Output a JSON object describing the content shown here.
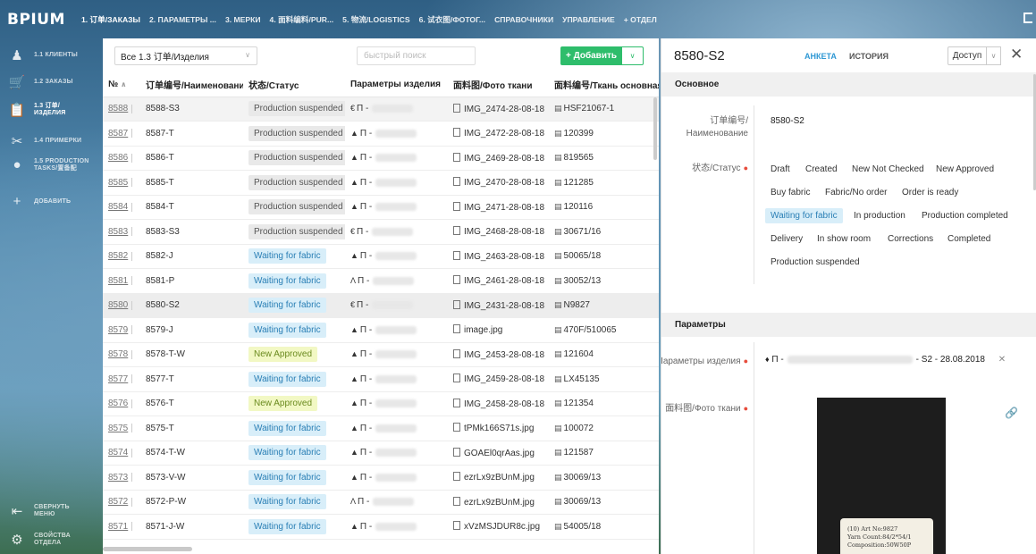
{
  "app": {
    "logo": "BPIUM"
  },
  "topnav": [
    {
      "label": "1. 订单/ЗАКАЗЫ",
      "active": true
    },
    {
      "label": "2. ПАРАМЕТРЫ ..."
    },
    {
      "label": "3. МЕРКИ"
    },
    {
      "label": "4. 面料编料/PUR..."
    },
    {
      "label": "5. 物流/LOGISTICS"
    },
    {
      "label": "6. 试衣图/ФОТОГ..."
    },
    {
      "label": "СПРАВОЧНИКИ"
    },
    {
      "label": "УПРАВЛЕНИЕ"
    },
    {
      "label": "+ ОТДЕЛ"
    }
  ],
  "sidebar": {
    "items": [
      {
        "label": "1.1 КЛИЕНТЫ",
        "icon": "person-icon"
      },
      {
        "label": "1.2 ЗАКАЗЫ",
        "icon": "cart-icon"
      },
      {
        "label": "1.3 订单/ ИЗДЕЛИЯ",
        "icon": "clipboard-icon",
        "active": true
      },
      {
        "label": "1.4 ПРИМЕРКИ",
        "icon": "scissors-icon"
      },
      {
        "label": "1.5 PRODUCTION TASKS/置备配",
        "icon": "chat-icon"
      },
      {
        "label": "ДОБАВИТЬ",
        "icon": "plus-icon"
      }
    ],
    "collapse_label": "СВЕРНУТЬ МЕНЮ",
    "settings_label": "СВОЙСТВА ОТДЕЛА"
  },
  "toolbar": {
    "view_value": "Все 1.3 订单/Изделия",
    "search_placeholder": "быстрый поиск",
    "add_label": "+ Добавить"
  },
  "table": {
    "columns": [
      "№",
      "订单编号/Наименование",
      "状态/Статус",
      "Параметры изделия",
      "面料图/Фото ткани",
      "面料编号/Ткань основная"
    ],
    "rows": [
      {
        "n": "8588",
        "name": "8588-S3",
        "status": "Production suspended",
        "param": "П -",
        "photo": "IMG_2474-28-08-18",
        "fabric": "HSF21067-1",
        "style": "hl"
      },
      {
        "n": "8587",
        "name": "8587-T",
        "status": "Production suspended",
        "param": "П -",
        "photo": "IMG_2472-28-08-18",
        "fabric": "120399"
      },
      {
        "n": "8586",
        "name": "8586-T",
        "status": "Production suspended",
        "param": "П -",
        "photo": "IMG_2469-28-08-18",
        "fabric": "819565"
      },
      {
        "n": "8585",
        "name": "8585-T",
        "status": "Production suspended",
        "param": "П -",
        "photo": "IMG_2470-28-08-18",
        "fabric": "121285"
      },
      {
        "n": "8584",
        "name": "8584-T",
        "status": "Production suspended",
        "param": "П -",
        "photo": "IMG_2471-28-08-18",
        "fabric": "120116"
      },
      {
        "n": "8583",
        "name": "8583-S3",
        "status": "Production suspended",
        "param": "П -",
        "photo": "IMG_2468-28-08-18",
        "fabric": "30671/16"
      },
      {
        "n": "8582",
        "name": "8582-J",
        "status": "Waiting for fabric",
        "param": "П -",
        "photo": "IMG_2463-28-08-18",
        "fabric": "50065/18"
      },
      {
        "n": "8581",
        "name": "8581-P",
        "status": "Waiting for fabric",
        "param": "П -",
        "photo": "IMG_2461-28-08-18",
        "fabric": "30052/13"
      },
      {
        "n": "8580",
        "name": "8580-S2",
        "status": "Waiting for fabric",
        "param": "П -",
        "photo": "IMG_2431-28-08-18",
        "fabric": "N9827",
        "style": "sel"
      },
      {
        "n": "8579",
        "name": "8579-J",
        "status": "Waiting for fabric",
        "param": "П -",
        "photo": "image.jpg",
        "fabric": "470F/510065"
      },
      {
        "n": "8578",
        "name": "8578-T-W",
        "status": "New Approved",
        "param": "П -",
        "photo": "IMG_2453-28-08-18",
        "fabric": "121604"
      },
      {
        "n": "8577",
        "name": "8577-T",
        "status": "Waiting for fabric",
        "param": "П -",
        "photo": "IMG_2459-28-08-18",
        "fabric": "LX45135"
      },
      {
        "n": "8576",
        "name": "8576-T",
        "status": "New Approved",
        "param": "П -",
        "photo": "IMG_2458-28-08-18",
        "fabric": "121354"
      },
      {
        "n": "8575",
        "name": "8575-T",
        "status": "Waiting for fabric",
        "param": "П -",
        "photo": "tPMk166S71s.jpg",
        "fabric": "100072"
      },
      {
        "n": "8574",
        "name": "8574-T-W",
        "status": "Waiting for fabric",
        "param": "П -",
        "photo": "GOAEl0qrAas.jpg",
        "fabric": "121587"
      },
      {
        "n": "8573",
        "name": "8573-V-W",
        "status": "Waiting for fabric",
        "param": "П -",
        "photo": "ezrLx9zBUnM.jpg",
        "fabric": "30069/13"
      },
      {
        "n": "8572",
        "name": "8572-P-W",
        "status": "Waiting for fabric",
        "param": "П -",
        "photo": "ezrLx9zBUnM.jpg",
        "fabric": "30069/13"
      },
      {
        "n": "8571",
        "name": "8571-J-W",
        "status": "Waiting for fabric",
        "param": "П -",
        "photo": "xVzMSJDUR8c.jpg",
        "fabric": "54005/18"
      }
    ]
  },
  "detail": {
    "title": "8580-S2",
    "tabs": [
      "АНКЕТА",
      "ИСТОРИЯ"
    ],
    "access_label": "Доступ",
    "section_main": "Основное",
    "name_label": "订单编号/ Наименование",
    "name_value": "8580-S2",
    "status_label": "状态/Статус",
    "statuses": [
      "Draft",
      "Created",
      "New Not Checked",
      "New Approved",
      "Buy fabric",
      "Fabric/No order",
      "Order is ready",
      "Waiting for fabric",
      "In production",
      "Production completed",
      "Delivery",
      "In show room",
      "Corrections",
      "Completed",
      "Production suspended"
    ],
    "active_status": "Waiting for fabric",
    "section_params": "Параметры",
    "params_label": "Параметры изделия",
    "params_prefix": "П -",
    "params_suffix": "- S2 - 28.08.2018",
    "photo_label": "面料图/Фото ткани",
    "photo_card_lines": [
      "(10) Art No:9827",
      "Yarn Count:84/2*54/1",
      "Composition:50W50P"
    ]
  },
  "colors": {
    "accent": "#2ebd6b",
    "tab_active": "#2f98d4",
    "badge_blue_bg": "#d8eef9",
    "badge_yellow_bg": "#f2f8c4"
  }
}
